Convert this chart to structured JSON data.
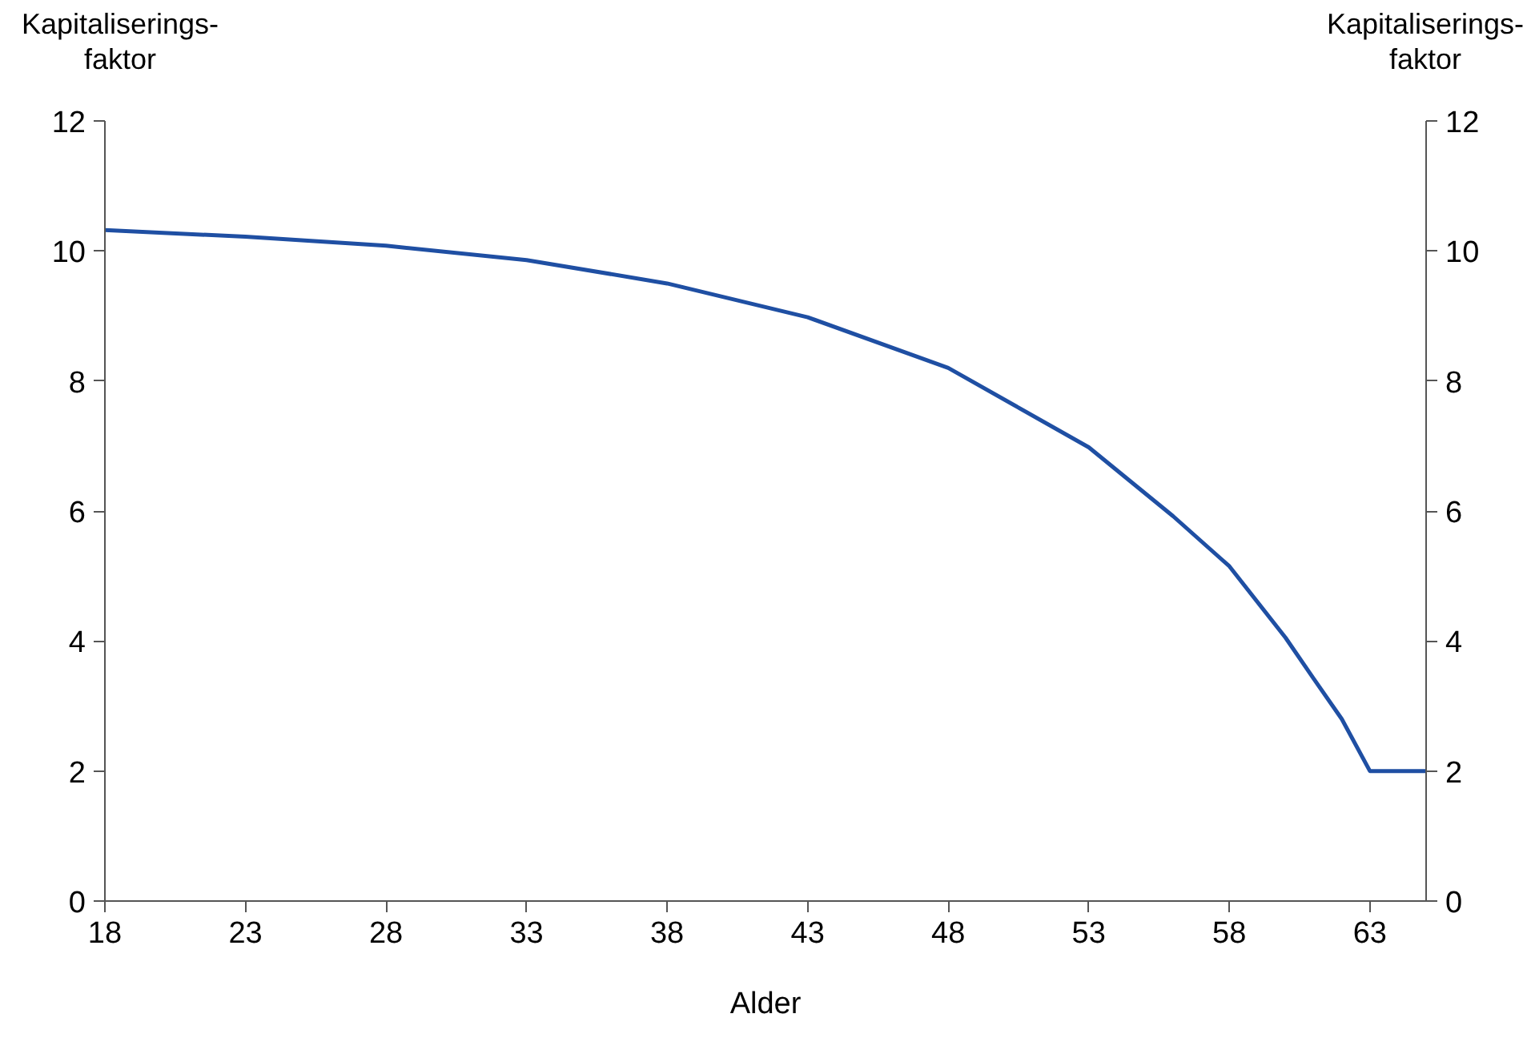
{
  "chart_data": {
    "type": "line",
    "xlabel": "Alder",
    "ylabel": "Kapitaliserings-\nfaktor",
    "y2label": "Kapitaliserings-\nfaktor",
    "x": [
      18,
      23,
      28,
      33,
      38,
      43,
      48,
      53,
      56,
      58,
      60,
      61,
      62,
      63,
      65
    ],
    "series": [
      {
        "color": "#1f4fa3",
        "values": [
          10.32,
          10.22,
          10.08,
          9.86,
          9.5,
          8.98,
          8.2,
          6.98,
          5.92,
          5.15,
          4.05,
          3.42,
          2.8,
          2.0,
          2.0
        ]
      }
    ],
    "xlim": [
      18,
      65
    ],
    "xticks": [
      18,
      23,
      28,
      33,
      38,
      43,
      48,
      53,
      58,
      63
    ],
    "ylim": [
      0,
      12
    ],
    "yticks": [
      0,
      2,
      4,
      6,
      8,
      10,
      12
    ],
    "y2lim": [
      0,
      12
    ],
    "y2ticks": [
      0,
      2,
      4,
      6,
      8,
      10,
      12
    ],
    "grid": false,
    "marker": "none",
    "line_style": "solid"
  }
}
